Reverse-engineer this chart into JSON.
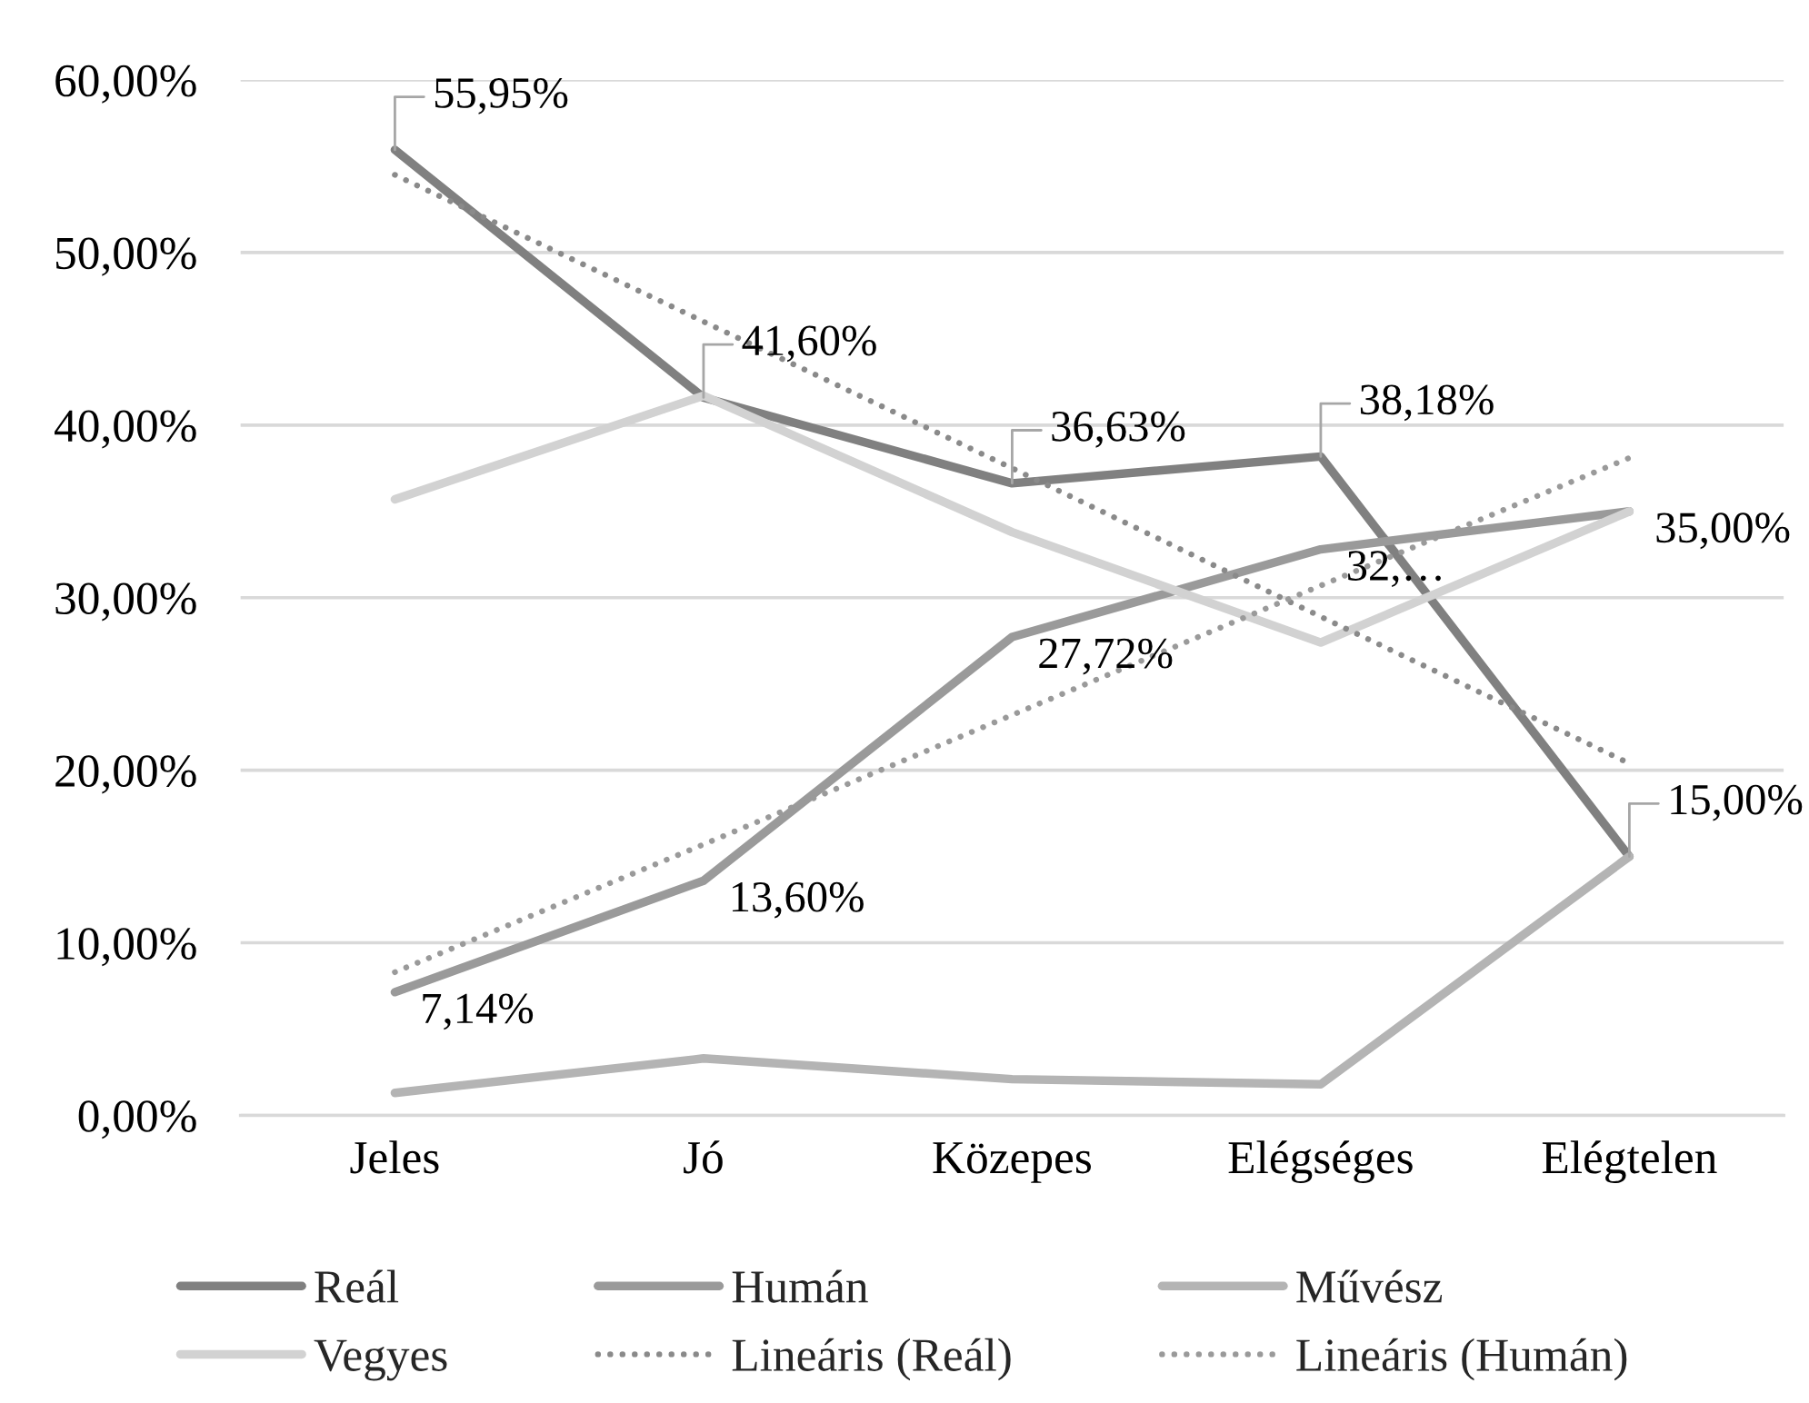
{
  "chart_data": {
    "type": "line",
    "categories": [
      "Jeles",
      "Jó",
      "Közepes",
      "Elégséges",
      "Elégtelen"
    ],
    "ylim": [
      0,
      60
    ],
    "yticks": [
      {
        "value": 0,
        "label": "0,00%"
      },
      {
        "value": 10,
        "label": "10,00%"
      },
      {
        "value": 20,
        "label": "20,00%"
      },
      {
        "value": 30,
        "label": "30,00%"
      },
      {
        "value": 40,
        "label": "40,00%"
      },
      {
        "value": 50,
        "label": "50,00%"
      },
      {
        "value": 60,
        "label": "60,00%"
      }
    ],
    "grid": "y",
    "legend": "bottom",
    "series": [
      {
        "name": "Reál",
        "color": "#808080",
        "line_style": "solid",
        "values": [
          55.95,
          41.6,
          36.63,
          38.18,
          15.0
        ],
        "value_labels": [
          "55,95%",
          "41,60%",
          "36,63%",
          "38,18%",
          "15,00%"
        ]
      },
      {
        "name": "Humán",
        "color": "#9a9a9a",
        "line_style": "solid",
        "values": [
          7.14,
          13.6,
          27.72,
          32.8,
          35.0
        ],
        "value_labels": [
          "7,14%",
          "13,60%",
          "27,72%",
          "32,…",
          "35,00%"
        ]
      },
      {
        "name": "Művész",
        "color": "#b4b4b4",
        "line_style": "solid",
        "values": [
          1.3,
          3.3,
          2.1,
          1.8,
          15.0
        ]
      },
      {
        "name": "Vegyes",
        "color": "#d2d2d2",
        "line_style": "solid",
        "values": [
          35.7,
          41.7,
          33.8,
          27.4,
          35.0
        ]
      },
      {
        "name": "Lineáris (Reál)",
        "type": "line",
        "color": "#8a8a8a",
        "line_style": "dotted",
        "values": [
          54.5,
          46.0,
          37.5,
          28.9,
          20.4
        ]
      },
      {
        "name": "Lineáris (Humán)",
        "type": "line",
        "color": "#9a9a9a",
        "line_style": "dotted",
        "values": [
          8.3,
          15.7,
          23.2,
          30.7,
          38.1
        ]
      }
    ]
  }
}
